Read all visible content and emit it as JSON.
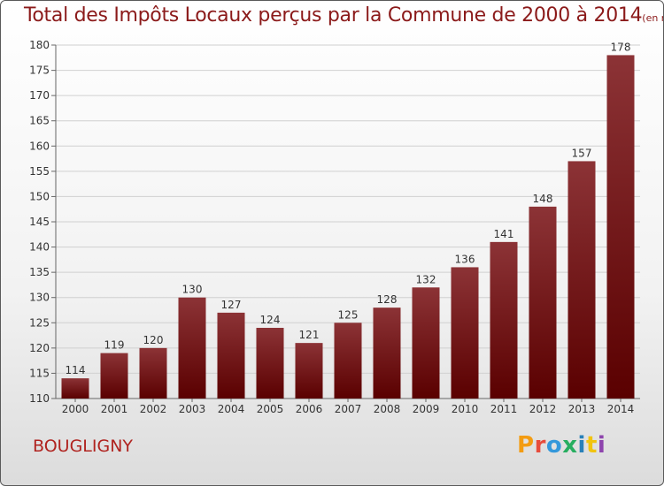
{
  "title": {
    "main": "Total des Impôts Locaux perçus par la Commune de 2000 à 2014",
    "unit": "(en milliers d'€)"
  },
  "commune": "BOUGLIGNY",
  "logo": {
    "text": "Proxiti",
    "colors": [
      "#f39c12",
      "#e74c3c",
      "#3498db",
      "#27ae60",
      "#2980b9",
      "#f1c40f",
      "#8e44ad"
    ]
  },
  "colors": {
    "bar_top": "#8c3336",
    "bar_bottom": "#5a0000",
    "title": "#8b1a1a",
    "label": "#333333",
    "grid": "#d0d0d0"
  },
  "chart_data": {
    "type": "bar",
    "categories": [
      "2000",
      "2001",
      "2002",
      "2003",
      "2004",
      "2005",
      "2006",
      "2007",
      "2008",
      "2009",
      "2010",
      "2011",
      "2012",
      "2013",
      "2014"
    ],
    "values": [
      114,
      119,
      120,
      130,
      127,
      124,
      121,
      125,
      128,
      132,
      136,
      141,
      148,
      157,
      178
    ],
    "ylim": [
      110,
      180
    ],
    "yticks": [
      110,
      115,
      120,
      125,
      130,
      135,
      140,
      145,
      150,
      155,
      160,
      165,
      170,
      175,
      180
    ],
    "grid": true,
    "data_labels": true
  }
}
